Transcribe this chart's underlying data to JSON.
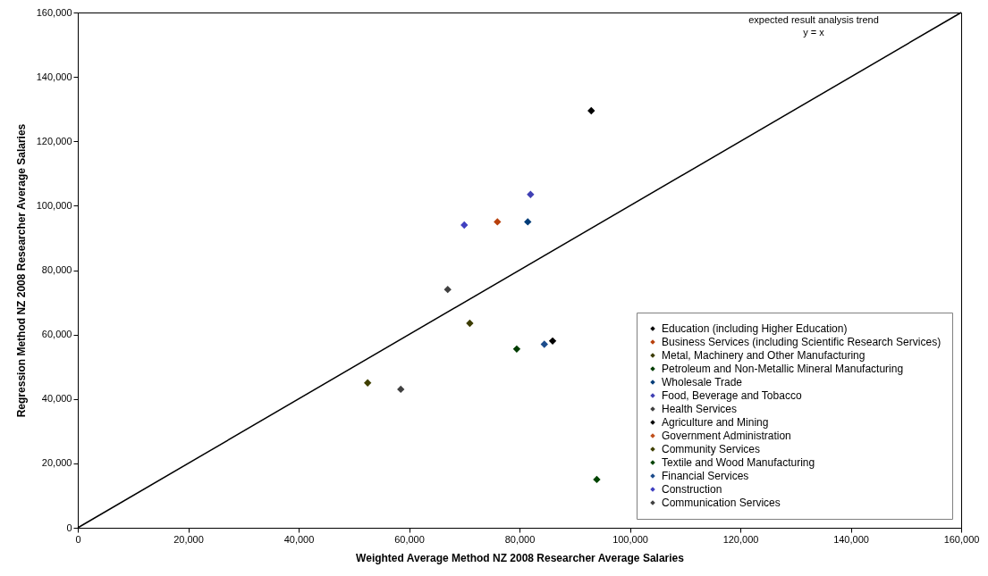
{
  "chart_data": {
    "type": "scatter",
    "xlabel": "Weighted Average Method NZ 2008 Researcher Average Salaries",
    "ylabel": "Regression Method NZ 2008 Researcher Average Salaries",
    "xlim": [
      0,
      160000
    ],
    "ylim": [
      0,
      160000
    ],
    "xticks": [
      {
        "value": 0,
        "label": "0"
      },
      {
        "value": 20000,
        "label": "20,000"
      },
      {
        "value": 40000,
        "label": "40,000"
      },
      {
        "value": 60000,
        "label": "60,000"
      },
      {
        "value": 80000,
        "label": "80,000"
      },
      {
        "value": 100000,
        "label": "100,000"
      },
      {
        "value": 120000,
        "label": "120,000"
      },
      {
        "value": 140000,
        "label": "140,000"
      },
      {
        "value": 160000,
        "label": "160,000"
      }
    ],
    "yticks": [
      {
        "value": 0,
        "label": "0"
      },
      {
        "value": 20000,
        "label": "20,000"
      },
      {
        "value": 40000,
        "label": "40,000"
      },
      {
        "value": 60000,
        "label": "60,000"
      },
      {
        "value": 80000,
        "label": "80,000"
      },
      {
        "value": 100000,
        "label": "100,000"
      },
      {
        "value": 120000,
        "label": "120,000"
      },
      {
        "value": 140000,
        "label": "140,000"
      },
      {
        "value": 160000,
        "label": "160,000"
      }
    ],
    "grid": false,
    "legend": "bottom right",
    "marker": "diamond",
    "series": [
      {
        "name": "Education (including Higher Education)",
        "color": "#000000",
        "x": [
          93000
        ],
        "values": [
          129500
        ]
      },
      {
        "name": "Business Services (including Scientific Research Services)",
        "color": "#b8400c",
        "x": [
          76000
        ],
        "values": [
          95000
        ]
      },
      {
        "name": "Metal, Machinery and Other Manufacturing",
        "color": "#3c3c00",
        "x": [
          71000
        ],
        "values": [
          63500
        ]
      },
      {
        "name": "Petroleum and Non-Metallic Mineral Manufacturing",
        "color": "#003c00",
        "x": [
          79500
        ],
        "values": [
          55500
        ]
      },
      {
        "name": "Wholesale Trade",
        "color": "#003c78",
        "x": [
          81500
        ],
        "values": [
          95000
        ]
      },
      {
        "name": "Food, Beverage and Tobacco",
        "color": "#4040b4",
        "x": [
          82000
        ],
        "values": [
          103500
        ]
      },
      {
        "name": "Health Services",
        "color": "#404040",
        "x": [
          67000
        ],
        "values": [
          74000
        ]
      },
      {
        "name": "Agriculture and Mining",
        "color": "#000000",
        "x": [
          86000
        ],
        "values": [
          58000
        ]
      },
      {
        "name": "Government Administration",
        "color": "#c0501c",
        "x": [
          null
        ],
        "values": [
          null
        ]
      },
      {
        "name": "Community Services",
        "color": "#404000",
        "x": [
          52500
        ],
        "values": [
          45000
        ]
      },
      {
        "name": "Textile and Wood Manufacturing",
        "color": "#004400",
        "x": [
          94000
        ],
        "values": [
          15000
        ]
      },
      {
        "name": "Financial Services",
        "color": "#1c4c8c",
        "x": [
          84500
        ],
        "values": [
          57000
        ]
      },
      {
        "name": "Construction",
        "color": "#4040c0",
        "x": [
          70000
        ],
        "values": [
          94000
        ]
      },
      {
        "name": "Communication Services",
        "color": "#404040",
        "x": [
          58500
        ],
        "values": [
          43000
        ]
      },
      {
        "type": "line",
        "marker": "none",
        "color": "#000000",
        "x": [
          0,
          160000
        ],
        "values": [
          0,
          160000
        ]
      }
    ],
    "annotations": [
      "expected result analysis trend\ny = x"
    ]
  }
}
